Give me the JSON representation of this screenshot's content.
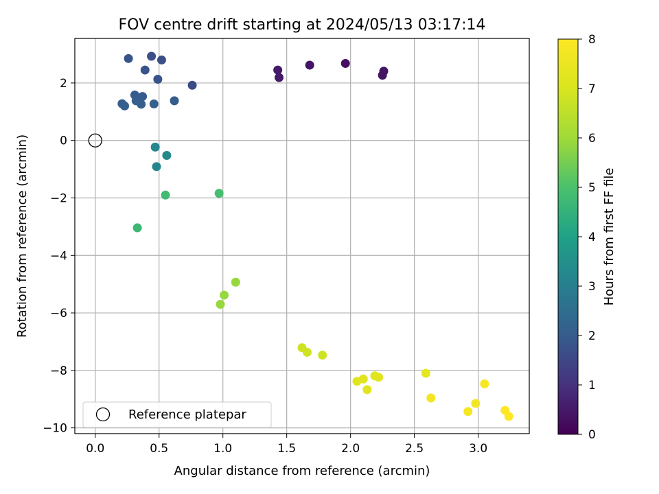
{
  "chart_data": {
    "type": "scatter",
    "title": "FOV centre drift starting at 2024/05/13 03:17:14",
    "xlabel": "Angular distance from reference (arcmin)",
    "ylabel": "Rotation from reference (arcmin)",
    "xlim": [
      -0.16,
      3.4
    ],
    "ylim": [
      -10.2,
      3.55
    ],
    "x_ticks": [
      0.0,
      0.5,
      1.0,
      1.5,
      2.0,
      2.5,
      3.0
    ],
    "x_tick_labels": [
      "0.0",
      "0.5",
      "1.0",
      "1.5",
      "2.0",
      "2.5",
      "3.0"
    ],
    "y_ticks": [
      2,
      0,
      -2,
      -4,
      -6,
      -8,
      -10
    ],
    "y_tick_labels": [
      "2",
      "0",
      "−2",
      "−4",
      "−6",
      "−8",
      "−10"
    ],
    "grid": true,
    "colormap": "viridis",
    "colorbar": {
      "label": "Hours from first FF file",
      "range": [
        0,
        8
      ],
      "ticks": [
        0,
        1,
        2,
        3,
        4,
        5,
        6,
        7,
        8
      ],
      "tick_labels": [
        "0",
        "1",
        "2",
        "3",
        "4",
        "5",
        "6",
        "7",
        "8"
      ]
    },
    "legend": {
      "position": "lower-left",
      "entries": [
        "Reference platepar"
      ]
    },
    "reference_point": {
      "x": 0.0,
      "y": 0.0
    },
    "points": [
      {
        "x": 1.43,
        "y": 2.45,
        "hours": 0.5
      },
      {
        "x": 1.44,
        "y": 2.19,
        "hours": 0.5
      },
      {
        "x": 1.68,
        "y": 2.62,
        "hours": 0.4
      },
      {
        "x": 1.96,
        "y": 2.68,
        "hours": 0.3
      },
      {
        "x": 2.25,
        "y": 2.27,
        "hours": 0.4
      },
      {
        "x": 2.26,
        "y": 2.41,
        "hours": 0.4
      },
      {
        "x": 0.76,
        "y": 1.92,
        "hours": 1.6
      },
      {
        "x": 0.26,
        "y": 2.85,
        "hours": 1.8
      },
      {
        "x": 0.44,
        "y": 2.93,
        "hours": 1.7
      },
      {
        "x": 0.52,
        "y": 2.8,
        "hours": 1.7
      },
      {
        "x": 0.39,
        "y": 2.45,
        "hours": 1.8
      },
      {
        "x": 0.49,
        "y": 2.13,
        "hours": 1.8
      },
      {
        "x": 0.62,
        "y": 1.38,
        "hours": 2.0
      },
      {
        "x": 0.31,
        "y": 1.58,
        "hours": 2.0
      },
      {
        "x": 0.37,
        "y": 1.53,
        "hours": 2.0
      },
      {
        "x": 0.32,
        "y": 1.38,
        "hours": 2.1
      },
      {
        "x": 0.36,
        "y": 1.26,
        "hours": 2.1
      },
      {
        "x": 0.46,
        "y": 1.27,
        "hours": 2.1
      },
      {
        "x": 0.21,
        "y": 1.28,
        "hours": 2.1
      },
      {
        "x": 0.23,
        "y": 1.2,
        "hours": 2.1
      },
      {
        "x": 0.47,
        "y": -0.23,
        "hours": 3.2
      },
      {
        "x": 0.56,
        "y": -0.52,
        "hours": 3.3
      },
      {
        "x": 0.48,
        "y": -0.91,
        "hours": 3.2
      },
      {
        "x": 0.55,
        "y": -1.9,
        "hours": 4.8
      },
      {
        "x": 0.97,
        "y": -1.84,
        "hours": 4.9
      },
      {
        "x": 0.33,
        "y": -3.04,
        "hours": 4.7
      },
      {
        "x": 1.1,
        "y": -4.93,
        "hours": 5.9
      },
      {
        "x": 1.01,
        "y": -5.38,
        "hours": 5.9
      },
      {
        "x": 0.98,
        "y": -5.7,
        "hours": 5.9
      },
      {
        "x": 1.62,
        "y": -7.21,
        "hours": 6.8
      },
      {
        "x": 1.66,
        "y": -7.37,
        "hours": 6.8
      },
      {
        "x": 1.78,
        "y": -7.47,
        "hours": 6.8
      },
      {
        "x": 2.05,
        "y": -8.38,
        "hours": 7.2
      },
      {
        "x": 2.1,
        "y": -8.3,
        "hours": 7.2
      },
      {
        "x": 2.13,
        "y": -8.67,
        "hours": 7.2
      },
      {
        "x": 2.19,
        "y": -8.19,
        "hours": 7.2
      },
      {
        "x": 2.22,
        "y": -8.24,
        "hours": 7.2
      },
      {
        "x": 2.59,
        "y": -8.1,
        "hours": 7.3
      },
      {
        "x": 2.63,
        "y": -8.96,
        "hours": 7.7
      },
      {
        "x": 2.98,
        "y": -9.15,
        "hours": 7.7
      },
      {
        "x": 2.92,
        "y": -9.43,
        "hours": 7.8
      },
      {
        "x": 3.05,
        "y": -8.47,
        "hours": 7.8
      },
      {
        "x": 3.21,
        "y": -9.39,
        "hours": 8.0
      },
      {
        "x": 3.24,
        "y": -9.6,
        "hours": 8.0
      }
    ]
  }
}
